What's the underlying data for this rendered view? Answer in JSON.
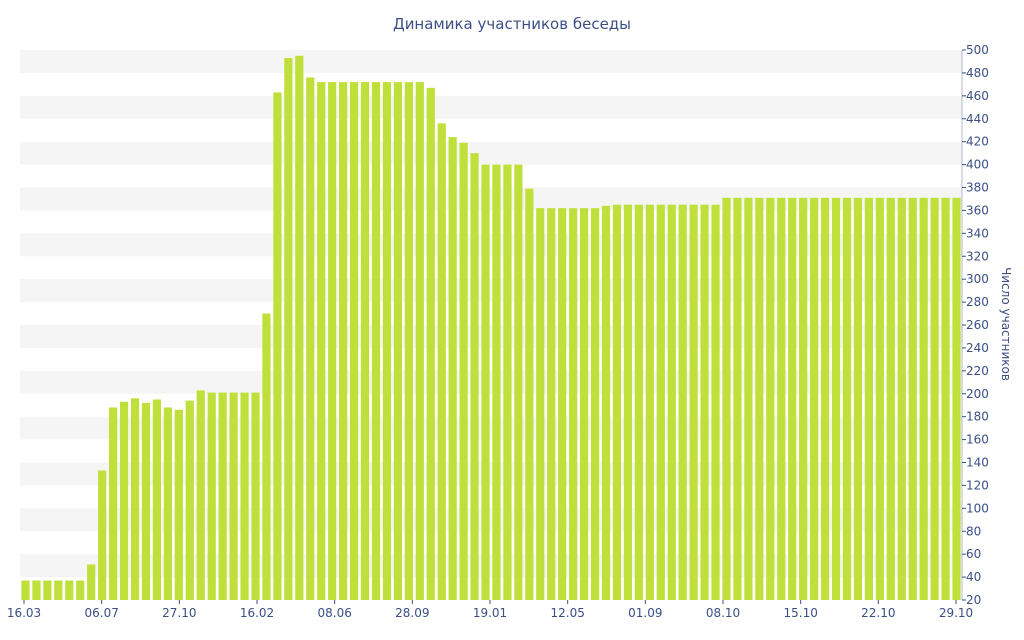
{
  "chart_data": {
    "type": "bar",
    "title": "Динамика участников беседы",
    "ylabel": "Число участников",
    "ylim": [
      20,
      500
    ],
    "y_ticks": [
      20,
      40,
      60,
      80,
      100,
      120,
      140,
      160,
      180,
      200,
      220,
      240,
      260,
      280,
      300,
      320,
      340,
      360,
      380,
      400,
      420,
      440,
      460,
      480,
      500
    ],
    "y_axis_side": "right",
    "x_tick_labels": [
      "16.03",
      "06.07",
      "27.10",
      "16.02",
      "08.06",
      "28.09",
      "19.01",
      "12.05",
      "01.09",
      "08.10",
      "15.10",
      "22.10",
      "29.10"
    ],
    "grid": "horizontal bands",
    "bar_color": "#bfe03a",
    "band_color": "#f5f5f5",
    "text_color": "#3b4f86",
    "values": [
      37,
      37,
      37,
      37,
      37,
      37,
      51,
      133,
      188,
      193,
      196,
      192,
      195,
      188,
      186,
      194,
      203,
      201,
      201,
      201,
      201,
      201,
      270,
      463,
      493,
      495,
      476,
      472,
      472,
      472,
      472,
      472,
      472,
      472,
      472,
      472,
      472,
      467,
      436,
      424,
      419,
      410,
      400,
      400,
      400,
      400,
      379,
      362,
      362,
      362,
      362,
      362,
      362,
      364,
      365,
      365,
      365,
      365,
      365,
      365,
      365,
      365,
      365,
      365,
      371,
      371,
      371,
      371,
      371,
      371,
      371,
      371,
      371,
      371,
      371,
      371,
      371,
      371,
      371,
      371,
      371,
      371,
      371,
      371,
      371,
      371
    ]
  }
}
